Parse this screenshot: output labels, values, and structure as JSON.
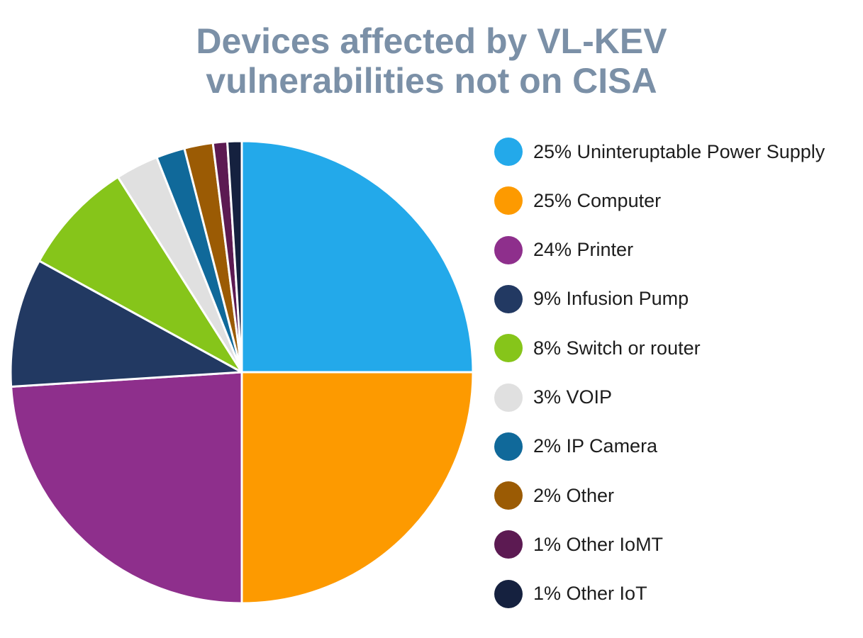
{
  "chart_data": {
    "type": "pie",
    "title_lines": [
      "Devices affected by VL-KEV",
      "vulnerabilities not on CISA"
    ],
    "start": "top",
    "direction": "clockwise",
    "legend_position": "right",
    "slices": [
      {
        "label": "25% Uninteruptable Power Supply",
        "value": 25,
        "color": "#23a9ea"
      },
      {
        "label": "25% Computer",
        "value": 25,
        "color": "#fd9a00"
      },
      {
        "label": "24% Printer",
        "value": 24,
        "color": "#8e2f8c"
      },
      {
        "label": "9% Infusion Pump",
        "value": 9,
        "color": "#223962"
      },
      {
        "label": "8% Switch or router",
        "value": 8,
        "color": "#86c51a"
      },
      {
        "label": "3% VOIP",
        "value": 3,
        "color": "#e0e0e0"
      },
      {
        "label": "2% IP Camera",
        "value": 2,
        "color": "#10699a"
      },
      {
        "label": "2% Other",
        "value": 2,
        "color": "#9b5b04"
      },
      {
        "label": "1% Other IoMT",
        "value": 1,
        "color": "#5c1a52"
      },
      {
        "label": "1% Other IoT",
        "value": 1,
        "color": "#15213f"
      }
    ]
  }
}
